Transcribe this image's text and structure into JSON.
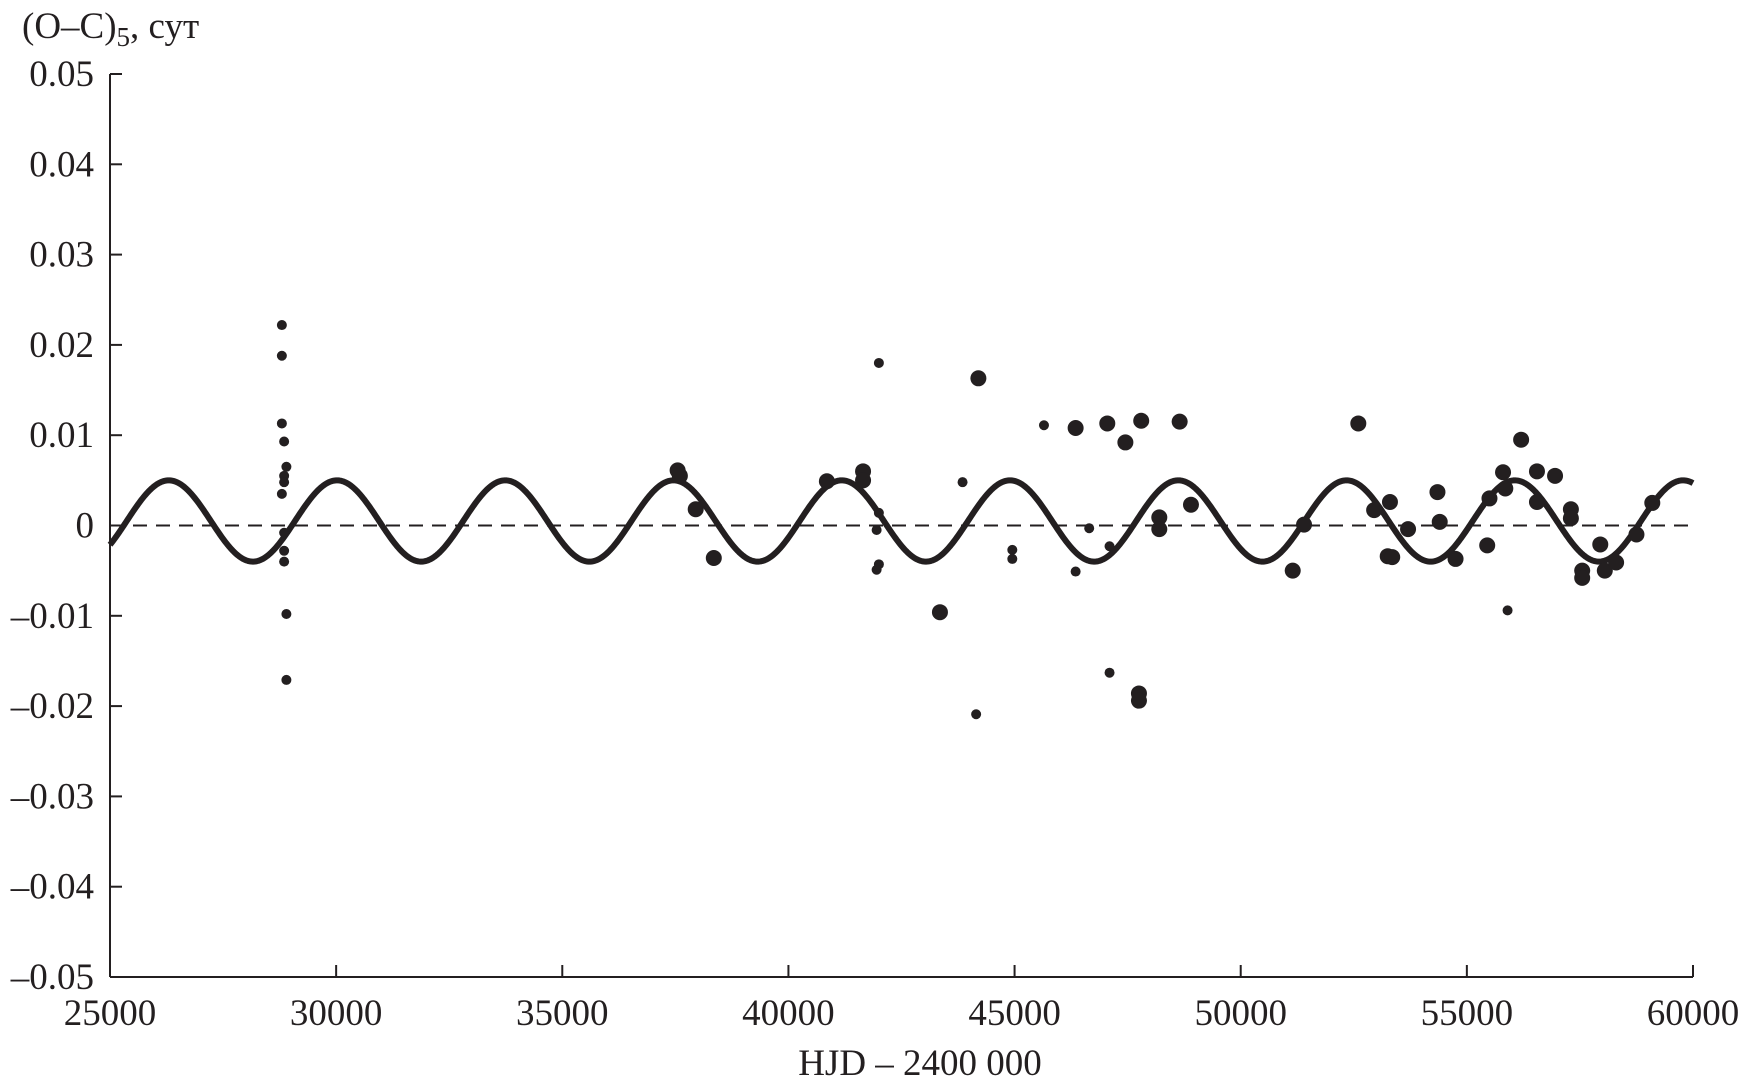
{
  "chart_data": {
    "type": "scatter",
    "ylabel": {
      "main": "(O–C)",
      "sub": "5",
      "suffix": ", сут"
    },
    "xlabel": "HJD – 2400 000",
    "xlim": [
      25000,
      60000
    ],
    "ylim": [
      -0.05,
      0.05
    ],
    "x_ticks": [
      25000,
      30000,
      35000,
      40000,
      45000,
      50000,
      55000,
      60000
    ],
    "x_tick_labels": [
      "25000",
      "30000",
      "35000",
      "40000",
      "45000",
      "50000",
      "55000",
      "60000"
    ],
    "y_ticks": [
      0.05,
      0.04,
      0.03,
      0.02,
      0.01,
      0,
      -0.01,
      -0.02,
      -0.03,
      -0.04,
      -0.05
    ],
    "y_tick_labels": [
      "0.05",
      "0.04",
      "0.03",
      "0.02",
      "0.01",
      "0",
      "–0.01",
      "–0.02",
      "–0.03",
      "–0.04",
      "–0.05"
    ],
    "zero_line": {
      "y": 0,
      "style": "dashed"
    },
    "fit": {
      "type": "sinusoid",
      "amplitude": 0.0045,
      "offset": 0.0005,
      "period": 3720,
      "peak_at": 26300,
      "x_range": [
        25000,
        60000
      ]
    },
    "points": [
      {
        "x": 28800,
        "y": 0.0222,
        "size": "small"
      },
      {
        "x": 28800,
        "y": 0.0188,
        "size": "small"
      },
      {
        "x": 28800,
        "y": 0.0113,
        "size": "small"
      },
      {
        "x": 28850,
        "y": 0.0093,
        "size": "small"
      },
      {
        "x": 28900,
        "y": 0.0065,
        "size": "small"
      },
      {
        "x": 28850,
        "y": 0.0055,
        "size": "small"
      },
      {
        "x": 28850,
        "y": 0.0048,
        "size": "small"
      },
      {
        "x": 28800,
        "y": 0.0035,
        "size": "small"
      },
      {
        "x": 28850,
        "y": -0.0008,
        "size": "small"
      },
      {
        "x": 28850,
        "y": -0.0028,
        "size": "small"
      },
      {
        "x": 28850,
        "y": -0.004,
        "size": "small"
      },
      {
        "x": 28900,
        "y": -0.0098,
        "size": "small"
      },
      {
        "x": 28900,
        "y": -0.0171,
        "size": "small"
      },
      {
        "x": 37550,
        "y": 0.0061,
        "size": "large"
      },
      {
        "x": 37600,
        "y": 0.0055,
        "size": "large"
      },
      {
        "x": 37950,
        "y": 0.0018,
        "size": "large"
      },
      {
        "x": 38350,
        "y": -0.0036,
        "size": "large"
      },
      {
        "x": 40850,
        "y": 0.0049,
        "size": "large"
      },
      {
        "x": 41650,
        "y": 0.006,
        "size": "large"
      },
      {
        "x": 41650,
        "y": 0.005,
        "size": "large"
      },
      {
        "x": 42000,
        "y": 0.018,
        "size": "small"
      },
      {
        "x": 42000,
        "y": 0.0014,
        "size": "small"
      },
      {
        "x": 41950,
        "y": -0.0005,
        "size": "small"
      },
      {
        "x": 42000,
        "y": -0.0043,
        "size": "small"
      },
      {
        "x": 41950,
        "y": -0.0049,
        "size": "small"
      },
      {
        "x": 43350,
        "y": -0.0096,
        "size": "large"
      },
      {
        "x": 43850,
        "y": 0.0048,
        "size": "small"
      },
      {
        "x": 44150,
        "y": -0.0209,
        "size": "small"
      },
      {
        "x": 44200,
        "y": 0.0163,
        "size": "large"
      },
      {
        "x": 44950,
        "y": -0.0027,
        "size": "small"
      },
      {
        "x": 44950,
        "y": -0.0037,
        "size": "small"
      },
      {
        "x": 45650,
        "y": 0.0111,
        "size": "small"
      },
      {
        "x": 46350,
        "y": 0.0108,
        "size": "large"
      },
      {
        "x": 46350,
        "y": -0.0051,
        "size": "small"
      },
      {
        "x": 46650,
        "y": -0.0003,
        "size": "small"
      },
      {
        "x": 47050,
        "y": 0.0113,
        "size": "large"
      },
      {
        "x": 47100,
        "y": -0.0023,
        "size": "small"
      },
      {
        "x": 47100,
        "y": -0.0163,
        "size": "small"
      },
      {
        "x": 47450,
        "y": 0.0092,
        "size": "large"
      },
      {
        "x": 47750,
        "y": -0.0186,
        "size": "large"
      },
      {
        "x": 47750,
        "y": -0.0194,
        "size": "large"
      },
      {
        "x": 47800,
        "y": 0.0116,
        "size": "large"
      },
      {
        "x": 48200,
        "y": 0.0009,
        "size": "large"
      },
      {
        "x": 48200,
        "y": -0.0004,
        "size": "large"
      },
      {
        "x": 48650,
        "y": 0.0115,
        "size": "large"
      },
      {
        "x": 48900,
        "y": 0.0023,
        "size": "large"
      },
      {
        "x": 51150,
        "y": -0.005,
        "size": "large"
      },
      {
        "x": 51400,
        "y": 0.0001,
        "size": "large"
      },
      {
        "x": 52600,
        "y": 0.0113,
        "size": "large"
      },
      {
        "x": 52950,
        "y": 0.0017,
        "size": "large"
      },
      {
        "x": 53300,
        "y": 0.0026,
        "size": "large"
      },
      {
        "x": 53250,
        "y": -0.0034,
        "size": "large"
      },
      {
        "x": 53350,
        "y": -0.0035,
        "size": "large"
      },
      {
        "x": 53700,
        "y": -0.0004,
        "size": "large"
      },
      {
        "x": 54350,
        "y": 0.0037,
        "size": "large"
      },
      {
        "x": 54400,
        "y": 0.0004,
        "size": "large"
      },
      {
        "x": 54750,
        "y": -0.0037,
        "size": "large"
      },
      {
        "x": 55450,
        "y": -0.0022,
        "size": "large"
      },
      {
        "x": 55500,
        "y": 0.003,
        "size": "large"
      },
      {
        "x": 55800,
        "y": 0.0059,
        "size": "large"
      },
      {
        "x": 55850,
        "y": 0.0041,
        "size": "large"
      },
      {
        "x": 55900,
        "y": -0.0094,
        "size": "small"
      },
      {
        "x": 56200,
        "y": 0.0095,
        "size": "large"
      },
      {
        "x": 56550,
        "y": 0.006,
        "size": "large"
      },
      {
        "x": 56550,
        "y": 0.0026,
        "size": "large"
      },
      {
        "x": 56950,
        "y": 0.0055,
        "size": "large"
      },
      {
        "x": 57300,
        "y": 0.0018,
        "size": "large"
      },
      {
        "x": 57300,
        "y": 0.0008,
        "size": "large"
      },
      {
        "x": 57550,
        "y": -0.005,
        "size": "large"
      },
      {
        "x": 57550,
        "y": -0.0058,
        "size": "large"
      },
      {
        "x": 57950,
        "y": -0.0021,
        "size": "large"
      },
      {
        "x": 58050,
        "y": -0.005,
        "size": "large"
      },
      {
        "x": 58300,
        "y": -0.0041,
        "size": "large"
      },
      {
        "x": 58750,
        "y": -0.001,
        "size": "large"
      },
      {
        "x": 59100,
        "y": 0.0025,
        "size": "large"
      }
    ]
  }
}
